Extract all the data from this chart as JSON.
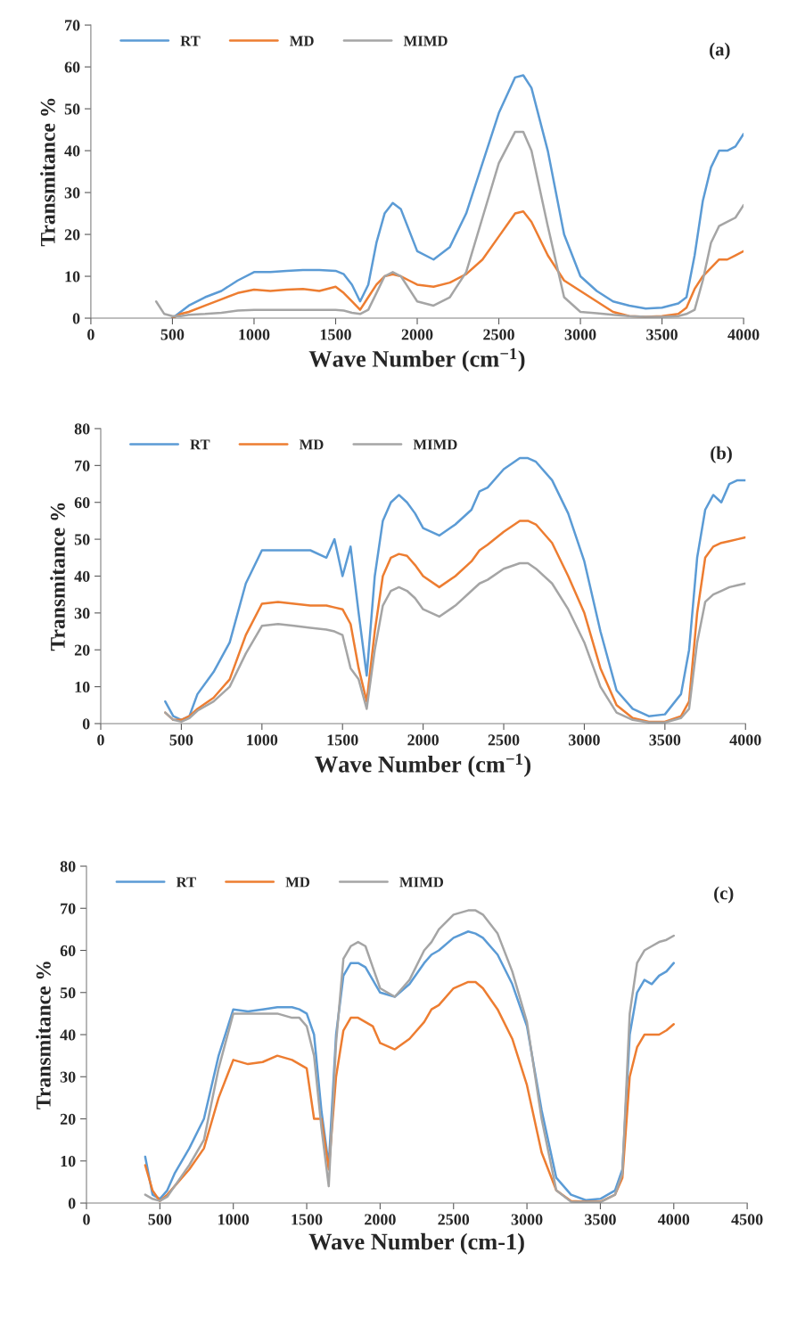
{
  "chart_data": [
    {
      "type": "line",
      "annotations": [
        "(a)"
      ],
      "xlabel": "Wave Number (cm$^{−1}$)",
      "ylabel": "Transmitance %",
      "xlim": [
        0,
        4000
      ],
      "ylim": [
        0,
        70
      ],
      "xticks": [
        0,
        500,
        1000,
        1500,
        2000,
        2500,
        3000,
        3500,
        4000
      ],
      "yticks": [
        0,
        10,
        20,
        30,
        40,
        50,
        60,
        70
      ],
      "grid": false,
      "legend": "top left",
      "marker": "none",
      "line_style": "solid",
      "x": [
        400,
        450,
        500,
        550,
        600,
        700,
        800,
        900,
        1000,
        1100,
        1200,
        1300,
        1400,
        1500,
        1550,
        1600,
        1650,
        1700,
        1750,
        1800,
        1850,
        1900,
        1950,
        2000,
        2100,
        2200,
        2300,
        2400,
        2500,
        2600,
        2650,
        2700,
        2800,
        2900,
        3000,
        3100,
        3200,
        3300,
        3400,
        3500,
        3600,
        3650,
        3700,
        3750,
        3800,
        3850,
        3900,
        3950,
        4000
      ],
      "series": [
        {
          "name": "RT",
          "color": "#5b9bd5",
          "values": [
            null,
            null,
            0,
            1.5,
            3,
            5,
            6.5,
            9,
            11,
            11,
            11.3,
            11.5,
            11.5,
            11.3,
            10.5,
            8,
            4,
            8,
            18,
            25,
            27.5,
            26,
            21,
            16,
            14,
            17,
            25,
            37,
            49,
            57.5,
            58,
            55,
            40,
            20,
            10,
            6.5,
            4,
            3,
            2.3,
            2.5,
            3.5,
            5,
            15,
            28,
            36,
            40,
            40,
            41,
            44
          ]
        },
        {
          "name": "MD",
          "color": "#ed7d31",
          "values": [
            null,
            null,
            0,
            1,
            1.5,
            3,
            4.5,
            6,
            6.8,
            6.5,
            6.8,
            7,
            6.5,
            7.5,
            6,
            4,
            2,
            5,
            8,
            10,
            10.5,
            10,
            9,
            8,
            7.5,
            8.5,
            10.5,
            14,
            19.5,
            25,
            25.5,
            23,
            15,
            9,
            6.5,
            4,
            1.5,
            0.5,
            0.3,
            0.5,
            1,
            2.5,
            7,
            10,
            12,
            14,
            14,
            15,
            16
          ]
        },
        {
          "name": "MIMD",
          "color": "#a5a5a5",
          "values": [
            4,
            1,
            0.5,
            0.5,
            0.8,
            1,
            1.3,
            1.8,
            2,
            2,
            2,
            2,
            2,
            2,
            1.8,
            1.3,
            1,
            2,
            6,
            10,
            11,
            10,
            7,
            4,
            3,
            5,
            11,
            24,
            37,
            44.5,
            44.5,
            40,
            22,
            5,
            1.5,
            1.2,
            0.8,
            0.5,
            0.3,
            0.3,
            0.5,
            1,
            2,
            9,
            18,
            22,
            23,
            24,
            27
          ]
        }
      ]
    },
    {
      "type": "line",
      "annotations": [
        "(b)"
      ],
      "xlabel": "Wave Number (cm$^{−1}$)",
      "ylabel": "Transmitance %",
      "xlim": [
        0,
        4000
      ],
      "ylim": [
        0,
        80
      ],
      "xticks": [
        0,
        500,
        1000,
        1500,
        2000,
        2500,
        3000,
        3500,
        4000
      ],
      "yticks": [
        0,
        10,
        20,
        30,
        40,
        50,
        60,
        70,
        80
      ],
      "grid": false,
      "legend": "top left",
      "marker": "none",
      "line_style": "solid",
      "x": [
        400,
        450,
        500,
        550,
        600,
        700,
        800,
        900,
        1000,
        1100,
        1200,
        1300,
        1400,
        1450,
        1500,
        1550,
        1600,
        1650,
        1700,
        1750,
        1800,
        1850,
        1900,
        1950,
        2000,
        2100,
        2200,
        2300,
        2350,
        2400,
        2500,
        2600,
        2650,
        2700,
        2800,
        2900,
        3000,
        3100,
        3200,
        3300,
        3400,
        3500,
        3600,
        3650,
        3700,
        3750,
        3800,
        3850,
        3900,
        3950,
        4000
      ],
      "series": [
        {
          "name": "RT",
          "color": "#5b9bd5",
          "values": [
            6,
            2,
            1,
            2,
            8,
            14,
            22,
            38,
            47,
            47,
            47,
            47,
            45,
            50,
            40,
            48,
            30,
            13,
            40,
            55,
            60,
            62,
            60,
            57,
            53,
            51,
            54,
            58,
            63,
            64,
            69,
            72,
            72,
            71,
            66,
            57,
            44,
            25,
            9,
            4,
            2,
            2.5,
            8,
            20,
            45,
            58,
            62,
            60,
            65,
            66,
            66
          ]
        },
        {
          "name": "MD",
          "color": "#ed7d31",
          "values": [
            3,
            1,
            1,
            2,
            4,
            7,
            12,
            24,
            32.5,
            33,
            32.5,
            32,
            32,
            31.5,
            31,
            27,
            15,
            6,
            25,
            40,
            45,
            46,
            45.5,
            43,
            40,
            37,
            40,
            44,
            47,
            48.5,
            52,
            55,
            55,
            54,
            49,
            40,
            30,
            15,
            5,
            1.5,
            0.5,
            0.5,
            2,
            6,
            30,
            45,
            48,
            49,
            49.5,
            50,
            50.5
          ]
        },
        {
          "name": "MIMD",
          "color": "#a5a5a5",
          "values": [
            3,
            1,
            0.5,
            1.5,
            3.5,
            6,
            10,
            19,
            26.5,
            27,
            26.5,
            26,
            25.5,
            25,
            24,
            15,
            12,
            4,
            20,
            32,
            36,
            37,
            36,
            34,
            31,
            29,
            32,
            36,
            38,
            39,
            42,
            43.5,
            43.5,
            42,
            38,
            31,
            22,
            10,
            3,
            1,
            0.3,
            0.3,
            1.5,
            4,
            22,
            33,
            35,
            36,
            37,
            37.5,
            38
          ]
        }
      ]
    },
    {
      "type": "line",
      "annotations": [
        "(c)"
      ],
      "xlabel": "Wave Number (cm-1)",
      "ylabel": "Transmitance %",
      "xlim": [
        0,
        4500
      ],
      "ylim": [
        0,
        80
      ],
      "xticks": [
        0,
        500,
        1000,
        1500,
        2000,
        2500,
        3000,
        3500,
        4000,
        4500
      ],
      "yticks": [
        0,
        10,
        20,
        30,
        40,
        50,
        60,
        70,
        80
      ],
      "grid": false,
      "legend": "top left",
      "marker": "none",
      "line_style": "solid",
      "x": [
        400,
        450,
        500,
        550,
        600,
        700,
        800,
        900,
        1000,
        1100,
        1200,
        1300,
        1400,
        1450,
        1500,
        1550,
        1600,
        1650,
        1700,
        1750,
        1800,
        1850,
        1900,
        1950,
        2000,
        2100,
        2200,
        2300,
        2350,
        2400,
        2500,
        2600,
        2650,
        2700,
        2800,
        2900,
        3000,
        3100,
        3200,
        3300,
        3400,
        3500,
        3600,
        3650,
        3700,
        3750,
        3800,
        3850,
        3900,
        3950,
        4000
      ],
      "series": [
        {
          "name": "RT",
          "color": "#5b9bd5",
          "values": [
            11,
            2,
            1,
            3,
            7,
            13,
            20,
            35,
            46,
            45.5,
            46,
            46.5,
            46.5,
            46,
            45,
            40,
            22,
            9,
            40,
            54,
            57,
            57,
            56,
            53,
            50,
            49,
            52,
            57,
            59,
            60,
            63,
            64.5,
            64,
            63,
            59,
            52,
            42,
            22,
            6,
            2,
            0.7,
            1,
            3,
            8,
            40,
            50,
            53,
            52,
            54,
            55,
            57
          ]
        },
        {
          "name": "MD",
          "color": "#ed7d31",
          "values": [
            9,
            3,
            0.5,
            2,
            4,
            8,
            13,
            25,
            34,
            33,
            33.5,
            35,
            34,
            33,
            32,
            20,
            20,
            8,
            30,
            41,
            44,
            44,
            43,
            42,
            38,
            36.5,
            39,
            43,
            46,
            47,
            51,
            52.5,
            52.5,
            51,
            46,
            39,
            28,
            12,
            3,
            0.5,
            0.3,
            0.3,
            2,
            6,
            30,
            37,
            40,
            40,
            40,
            41,
            42.5
          ]
        },
        {
          "name": "MIMD",
          "color": "#a5a5a5",
          "values": [
            2,
            1,
            0.5,
            1.5,
            4,
            9,
            15,
            32,
            45,
            45,
            45,
            45,
            44,
            44,
            42,
            35,
            18,
            4,
            38,
            58,
            61,
            62,
            61,
            56,
            51,
            49,
            53,
            60,
            62,
            65,
            68.5,
            69.5,
            69.5,
            68.5,
            64,
            55,
            43,
            20,
            3,
            0.3,
            0.2,
            0.2,
            2,
            7,
            45,
            57,
            60,
            61,
            62,
            62.5,
            63.5
          ]
        }
      ]
    }
  ]
}
